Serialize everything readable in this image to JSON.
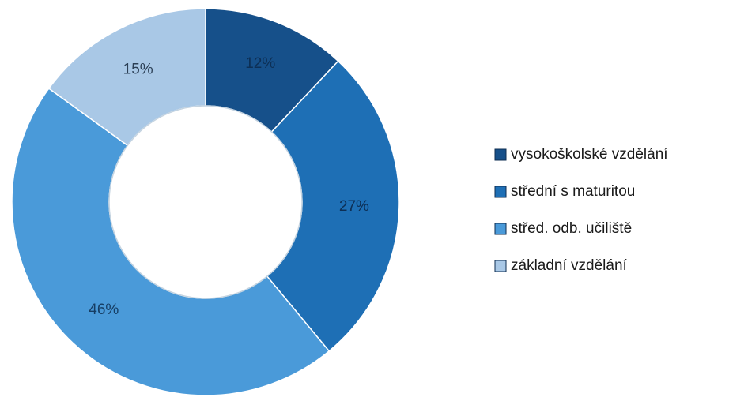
{
  "chart_data": {
    "type": "pie",
    "variant": "doughnut",
    "legend_position": "right",
    "slices": [
      {
        "name": "vysokoškolské vzdělání",
        "value": 12,
        "label": "12%",
        "color": "#16508a",
        "label_color": "#0d2f55"
      },
      {
        "name": "střední s maturitou",
        "value": 27,
        "label": "27%",
        "color": "#1e6fb5",
        "label_color": "#0d2f55"
      },
      {
        "name": "střed. odb. učiliště",
        "value": 46,
        "label": "46%",
        "color": "#4a9ad9",
        "label_color": "#163d63"
      },
      {
        "name": "základní vzdělání",
        "value": 15,
        "label": "15%",
        "color": "#a9c8e6",
        "label_color": "#2b3f55"
      }
    ]
  }
}
